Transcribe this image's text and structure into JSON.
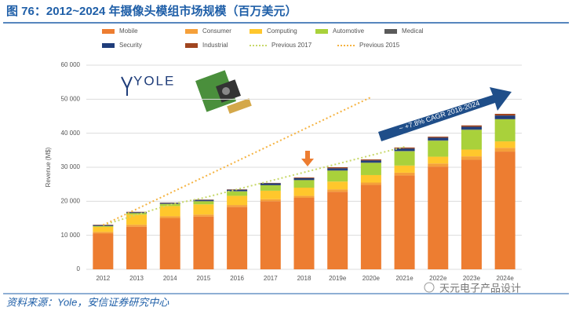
{
  "chart_data": {
    "type": "bar",
    "stacked": true,
    "title": "图 76：2012~2024 年摄像头模组市场规模（百万美元）",
    "source": "资料来源：Yole，安信证券研究中心",
    "watermark": "天元电子产品设计",
    "logo": "YOLE",
    "annotation": "~ +7.8% CAGR 2018-2024",
    "y_label": "Revenue (M$)",
    "categories": [
      "2012",
      "2013",
      "2014",
      "2015",
      "2016",
      "2017",
      "2018",
      "2019e",
      "2020e",
      "2021e",
      "2022e",
      "2023e",
      "2024e"
    ],
    "series": [
      {
        "name": "Mobile",
        "color": "#ed7d31",
        "values": [
          10500,
          12500,
          15000,
          15500,
          18300,
          20000,
          21000,
          22800,
          24800,
          27600,
          30200,
          32200,
          34600
        ]
      },
      {
        "name": "Consumer",
        "color": "#f5a03a",
        "values": [
          500,
          600,
          600,
          600,
          600,
          600,
          600,
          700,
          700,
          800,
          900,
          1000,
          1100
        ]
      },
      {
        "name": "Computing",
        "color": "#ffc72c",
        "values": [
          1500,
          3000,
          3000,
          3000,
          2700,
          2500,
          2400,
          2300,
          2200,
          2100,
          2000,
          2000,
          1900
        ]
      },
      {
        "name": "Automotive",
        "color": "#a9d13b",
        "values": [
          200,
          400,
          600,
          900,
          1300,
          1600,
          2200,
          3200,
          3600,
          4200,
          4700,
          5800,
          6500
        ]
      },
      {
        "name": "Medical",
        "color": "#5a5a5a",
        "values": [
          100,
          100,
          100,
          100,
          100,
          100,
          100,
          100,
          100,
          100,
          100,
          100,
          100
        ]
      },
      {
        "name": "Security",
        "color": "#1f3d7a",
        "values": [
          200,
          200,
          200,
          300,
          400,
          500,
          500,
          600,
          600,
          700,
          800,
          800,
          1000
        ]
      },
      {
        "name": "Industrial",
        "color": "#a0451f",
        "values": [
          100,
          100,
          100,
          100,
          100,
          100,
          200,
          300,
          300,
          300,
          300,
          400,
          500
        ]
      }
    ],
    "lines": [
      {
        "name": "Previous 2017",
        "color": "#c8d86a",
        "values": [
          13000,
          16000,
          19000,
          21000,
          23500,
          26000,
          28500,
          31000,
          33500,
          36000,
          null,
          null,
          null
        ]
      },
      {
        "name": "Previous 2015",
        "color": "#f5b341",
        "values": [
          13000,
          17700,
          22400,
          27100,
          31800,
          36500,
          41200,
          45900,
          50600,
          null,
          null,
          null,
          null
        ]
      }
    ],
    "ylim": [
      0,
      60000
    ],
    "yticks": [
      0,
      {
        "value": 10000,
        "label": "10 000"
      },
      {
        "value": 20000,
        "label": "20 000"
      },
      {
        "value": 30000,
        "label": "30 000"
      },
      {
        "value": 40000,
        "label": "40 000"
      },
      {
        "value": 50000,
        "label": "50 000"
      },
      {
        "value": 60000,
        "label": "60 000"
      }
    ],
    "grid": true
  }
}
